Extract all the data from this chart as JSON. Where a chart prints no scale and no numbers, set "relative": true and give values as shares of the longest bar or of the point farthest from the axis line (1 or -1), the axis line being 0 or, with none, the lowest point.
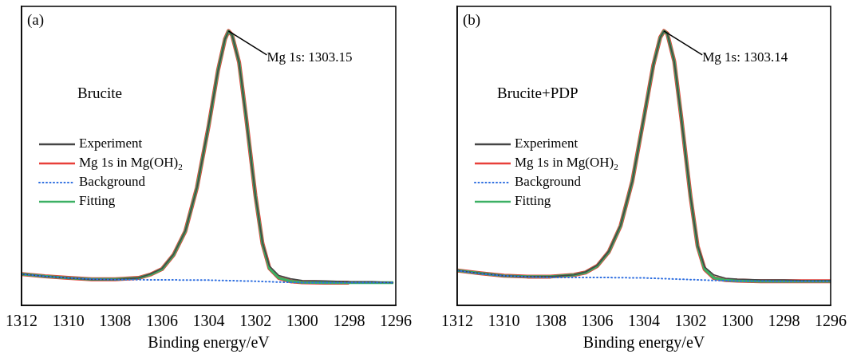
{
  "chart_data": [
    {
      "type": "line",
      "relative": true,
      "xlabel": "Binding energy/eV",
      "xlim": [
        1312,
        1296
      ],
      "xticks": [
        1312,
        1310,
        1308,
        1306,
        1304,
        1302,
        1300,
        1298,
        1296
      ],
      "tick_labels": "x",
      "grid": false,
      "legend": "left",
      "marker": "none",
      "annotations": [
        "(a)",
        "Brucite",
        {
          "text": "Mg 1s: 1303.15",
          "x": 1303.15,
          "y": 1
        }
      ],
      "series": [
        {
          "name": "Experiment",
          "color": "#454545",
          "line_style": "solid",
          "x": [
            1312,
            1311,
            1310,
            1309,
            1308,
            1307,
            1306.5,
            1306,
            1305.5,
            1305,
            1304.5,
            1304,
            1303.6,
            1303.3,
            1303.15,
            1303,
            1302.7,
            1302.4,
            1302,
            1301.7,
            1301.4,
            1301,
            1300.5,
            1300,
            1299,
            1298,
            1297,
            1296.1
          ],
          "values": [
            0.114,
            0.106,
            0.1,
            0.094,
            0.094,
            0.1,
            0.114,
            0.134,
            0.186,
            0.271,
            0.429,
            0.657,
            0.857,
            0.971,
            1,
            0.986,
            0.886,
            0.686,
            0.4,
            0.229,
            0.143,
            0.109,
            0.097,
            0.091,
            0.089,
            0.086,
            0.086,
            0.083
          ]
        },
        {
          "name": "Mg 1s in Mg(OH)$_{2}$",
          "color": "#e8403a",
          "line_style": "solid",
          "x": [
            1312,
            1311,
            1310,
            1309,
            1308,
            1307,
            1306.5,
            1306,
            1305.5,
            1305,
            1304.5,
            1304,
            1303.6,
            1303.3,
            1303.15,
            1303,
            1302.7,
            1302.4,
            1302,
            1301.7,
            1301.4,
            1301,
            1300.5,
            1300,
            1299,
            1298
          ],
          "values": [
            0.114,
            0.106,
            0.1,
            0.095,
            0.095,
            0.1,
            0.112,
            0.132,
            0.184,
            0.27,
            0.43,
            0.655,
            0.857,
            0.971,
            1,
            0.986,
            0.886,
            0.686,
            0.4,
            0.226,
            0.135,
            0.1,
            0.088,
            0.084,
            0.083,
            0.083
          ]
        },
        {
          "name": "Background",
          "color": "#2f6fe0",
          "line_style": "dotted",
          "x": [
            1312,
            1311,
            1310,
            1309,
            1308,
            1306,
            1304,
            1302,
            1301,
            1300,
            1298,
            1296.1
          ],
          "values": [
            0.114,
            0.106,
            0.1,
            0.096,
            0.094,
            0.093,
            0.092,
            0.088,
            0.085,
            0.083,
            0.083,
            0.083
          ]
        },
        {
          "name": "Fitting",
          "color": "#3cb064",
          "line_style": "solid",
          "x": [
            1312,
            1311,
            1310,
            1309,
            1308,
            1307,
            1306.5,
            1306,
            1305.5,
            1305,
            1304.5,
            1304,
            1303.6,
            1303.3,
            1303.15,
            1303,
            1302.7,
            1302.4,
            1302,
            1301.7,
            1301.4,
            1301,
            1300.5,
            1300,
            1299,
            1298,
            1297,
            1296.1
          ],
          "values": [
            0.114,
            0.106,
            0.1,
            0.095,
            0.095,
            0.1,
            0.112,
            0.132,
            0.184,
            0.27,
            0.43,
            0.655,
            0.857,
            0.971,
            1,
            0.986,
            0.886,
            0.686,
            0.4,
            0.226,
            0.135,
            0.1,
            0.088,
            0.084,
            0.083,
            0.083,
            0.083,
            0.083
          ]
        }
      ]
    },
    {
      "type": "line",
      "relative": true,
      "xlabel": "Binding energy/eV",
      "xlim": [
        1312,
        1296
      ],
      "xticks": [
        1312,
        1310,
        1308,
        1306,
        1304,
        1302,
        1300,
        1298,
        1296
      ],
      "tick_labels": "x",
      "grid": false,
      "legend": "left",
      "marker": "none",
      "annotations": [
        "(b)",
        "Brucite+PDP",
        {
          "text": "Mg 1s: 1303.14",
          "x": 1303.14,
          "y": 1
        }
      ],
      "series": [
        {
          "name": "Experiment",
          "color": "#454545",
          "line_style": "solid",
          "x": [
            1312,
            1311,
            1310,
            1309,
            1308,
            1307,
            1306.5,
            1306,
            1305.5,
            1305,
            1304.5,
            1304,
            1303.6,
            1303.3,
            1303.14,
            1303,
            1302.7,
            1302.4,
            1302,
            1301.7,
            1301.4,
            1301,
            1300.5,
            1300,
            1299,
            1298,
            1297,
            1296
          ],
          "values": [
            0.127,
            0.117,
            0.108,
            0.105,
            0.105,
            0.111,
            0.122,
            0.146,
            0.198,
            0.292,
            0.452,
            0.685,
            0.875,
            0.977,
            1,
            0.991,
            0.889,
            0.685,
            0.394,
            0.219,
            0.14,
            0.111,
            0.099,
            0.096,
            0.093,
            0.093,
            0.09,
            0.09
          ]
        },
        {
          "name": "Mg 1s in Mg(OH)$_{2}$",
          "color": "#e8403a",
          "line_style": "solid",
          "x": [
            1312,
            1311,
            1310,
            1309,
            1308,
            1307,
            1306.5,
            1306,
            1305.5,
            1305,
            1304.5,
            1304,
            1303.6,
            1303.3,
            1303.14,
            1303,
            1302.7,
            1302.4,
            1302,
            1301.7,
            1301.4,
            1301,
            1300.5,
            1300,
            1299,
            1298,
            1297,
            1296
          ],
          "values": [
            0.127,
            0.117,
            0.108,
            0.105,
            0.105,
            0.111,
            0.12,
            0.144,
            0.196,
            0.29,
            0.452,
            0.685,
            0.875,
            0.977,
            1,
            0.991,
            0.889,
            0.685,
            0.394,
            0.216,
            0.132,
            0.1,
            0.092,
            0.09,
            0.088,
            0.088,
            0.088,
            0.088
          ]
        },
        {
          "name": "Background",
          "color": "#2f6fe0",
          "line_style": "dotted",
          "x": [
            1312,
            1311,
            1310,
            1309,
            1308,
            1306,
            1304,
            1302,
            1301,
            1300,
            1298,
            1296
          ],
          "values": [
            0.127,
            0.115,
            0.108,
            0.104,
            0.102,
            0.102,
            0.1,
            0.094,
            0.091,
            0.089,
            0.088,
            0.088
          ]
        },
        {
          "name": "Fitting",
          "color": "#3cb064",
          "line_style": "solid",
          "x": [
            1312,
            1311,
            1310,
            1309,
            1308,
            1307,
            1306.5,
            1306,
            1305.5,
            1305,
            1304.5,
            1304,
            1303.6,
            1303.3,
            1303.14,
            1303,
            1302.7,
            1302.4,
            1302,
            1301.7,
            1301.4,
            1301,
            1300.5,
            1300,
            1299,
            1298,
            1297,
            1296
          ],
          "values": [
            0.127,
            0.117,
            0.108,
            0.105,
            0.105,
            0.111,
            0.12,
            0.144,
            0.196,
            0.29,
            0.452,
            0.685,
            0.875,
            0.977,
            1,
            0.991,
            0.889,
            0.685,
            0.394,
            0.216,
            0.132,
            0.1,
            0.092,
            0.09,
            0.088,
            0.088,
            0.088,
            0.088
          ]
        }
      ]
    }
  ]
}
